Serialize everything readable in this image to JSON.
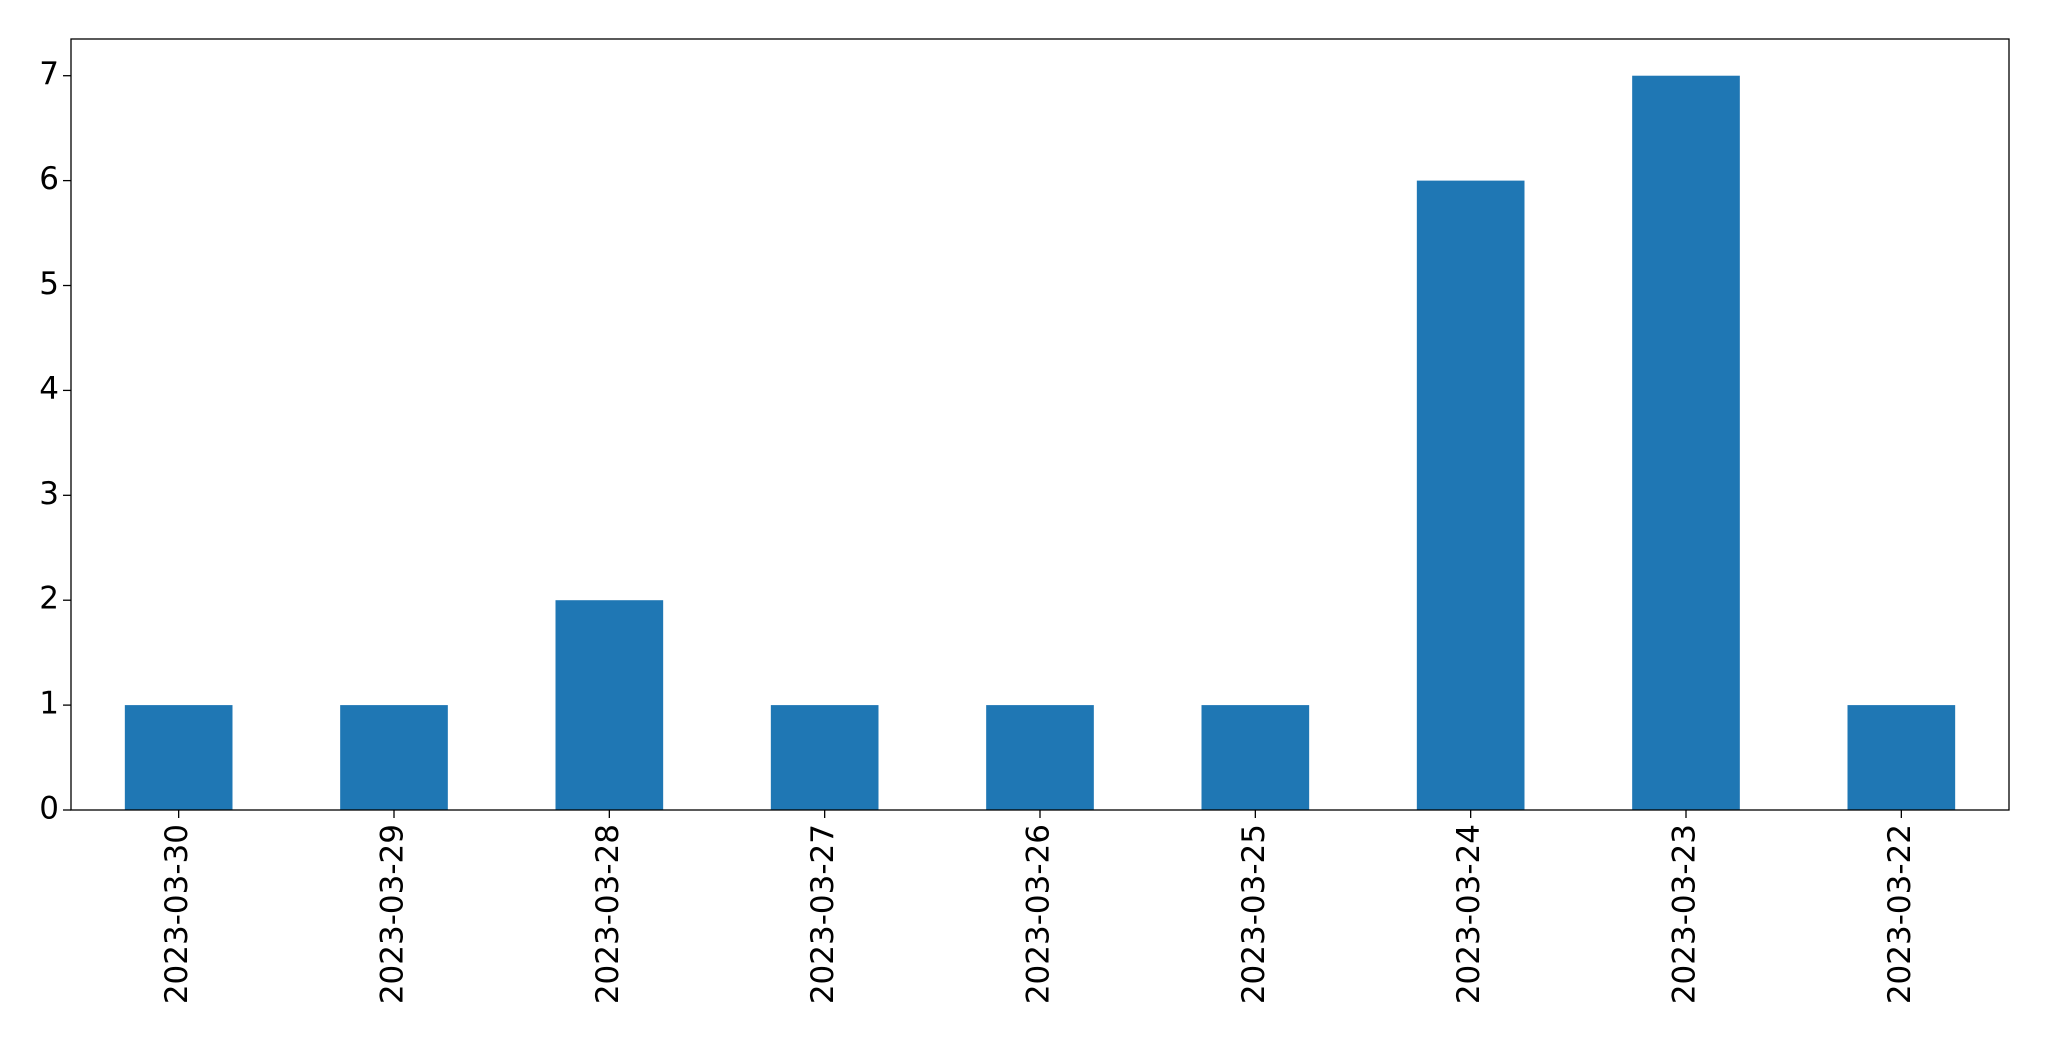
{
  "chart_data": {
    "type": "bar",
    "categories": [
      "2023-03-30",
      "2023-03-29",
      "2023-03-28",
      "2023-03-27",
      "2023-03-26",
      "2023-03-25",
      "2023-03-24",
      "2023-03-23",
      "2023-03-22"
    ],
    "values": [
      1,
      1,
      2,
      1,
      1,
      1,
      6,
      7,
      1
    ],
    "color": "#1f77b4",
    "ylim": [
      0,
      7.35
    ],
    "yticks": [
      0,
      1,
      2,
      3,
      4,
      5,
      6,
      7
    ],
    "grid": false
  }
}
